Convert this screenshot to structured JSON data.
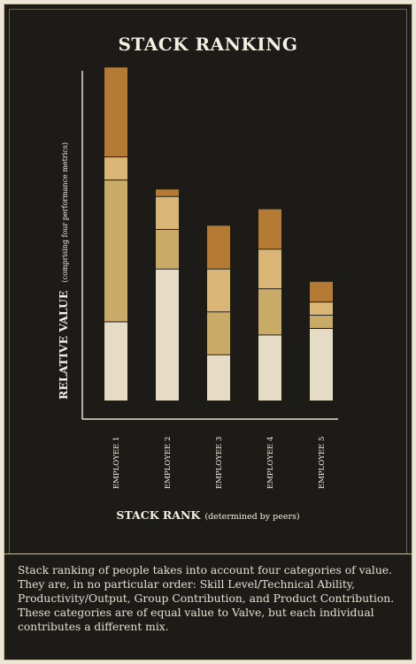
{
  "caption": "Stack ranking of people takes into account four categories of value. They are, in no particular order: Skill Level/Technical Ability, Productivity/Output, Group Contribution, and Product Contribution. These categories are of equal value to Valve, but each individual contributes a different mix.",
  "colors": {
    "background": "#1d1b18",
    "segment_1": "#e6dcc6",
    "segment_2": "#c9aa66",
    "segment_3": "#d9b676",
    "segment_4": "#b57a34",
    "text": "#f4efe2"
  },
  "chart_data": {
    "type": "bar",
    "stacked": true,
    "title": "STACK RANKING",
    "xlabel": "STACK RANK",
    "xlabel_note": "(determined by peers)",
    "ylabel": "RELATIVE VALUE",
    "ylabel_note": "(comprising four performance metrics)",
    "categories": [
      "EMPLOYEE 1",
      "EMPLOYEE 2",
      "EMPLOYEE 3",
      "EMPLOYEE 4",
      "EMPLOYEE 5"
    ],
    "ylim": [
      0,
      100
    ],
    "grid": false,
    "legend": "none",
    "series": [
      {
        "values": [
          24,
          40,
          14,
          20,
          22
        ]
      },
      {
        "values": [
          43,
          12,
          13,
          14,
          4
        ]
      },
      {
        "values": [
          7,
          10,
          13,
          12,
          4
        ]
      },
      {
        "values": [
          27,
          2,
          13,
          12,
          6
        ]
      }
    ]
  }
}
